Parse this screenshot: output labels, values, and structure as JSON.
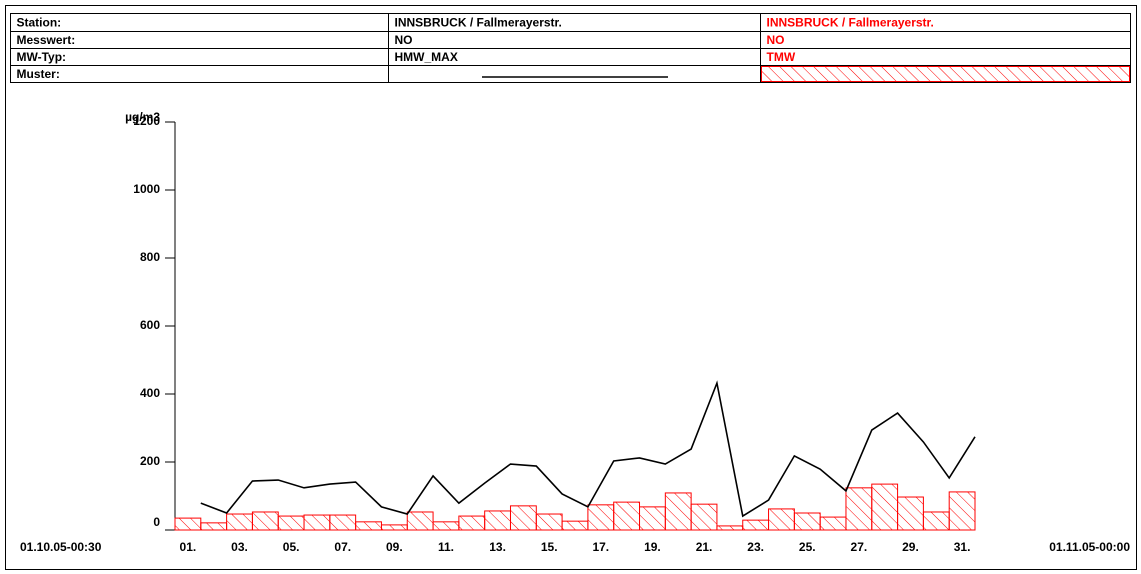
{
  "table": {
    "rows": [
      [
        "Station:",
        "INNSBRUCK / Fallmerayerstr.",
        "INNSBRUCK / Fallmerayerstr."
      ],
      [
        "Messwert:",
        "NO",
        "NO"
      ],
      [
        "MW-Typ:",
        "HMW_MAX",
        "TMW"
      ],
      [
        "Muster:"
      ]
    ]
  },
  "chart_data": {
    "type": "combo",
    "y_label": "µg/m3",
    "x_start_label": "01.10.05-00:30",
    "x_end_label": "01.11.05-00:00",
    "categories": [
      "01.",
      null,
      "03.",
      null,
      "05.",
      null,
      "07.",
      null,
      "09.",
      null,
      "11.",
      null,
      "13.",
      null,
      "15.",
      null,
      "17.",
      null,
      "19.",
      null,
      "21.",
      null,
      "23.",
      null,
      "25.",
      null,
      "27.",
      null,
      "29.",
      null,
      "31."
    ],
    "series": [
      {
        "type": "line",
        "color": "#000000",
        "values": [
          79,
          50,
          144,
          147,
          124,
          135,
          141,
          68,
          47,
          159,
          79,
          138,
          194,
          188,
          106,
          68,
          203,
          212,
          194,
          238,
          432,
          41,
          88,
          218,
          179,
          115,
          294,
          344,
          259,
          153,
          274
        ]
      },
      {
        "type": "bar",
        "color": "#ff0000",
        "hatch": true,
        "values": [
          35,
          21,
          47,
          53,
          41,
          44,
          44,
          24,
          15,
          53,
          24,
          41,
          56,
          71,
          47,
          26,
          74,
          82,
          68,
          109,
          76,
          12,
          29,
          62,
          50,
          38,
          124,
          135,
          97,
          53,
          112
        ]
      }
    ],
    "ylim": [
      0,
      1200
    ],
    "yticks": [
      0,
      200,
      400,
      600,
      800,
      1000,
      1200
    ]
  }
}
